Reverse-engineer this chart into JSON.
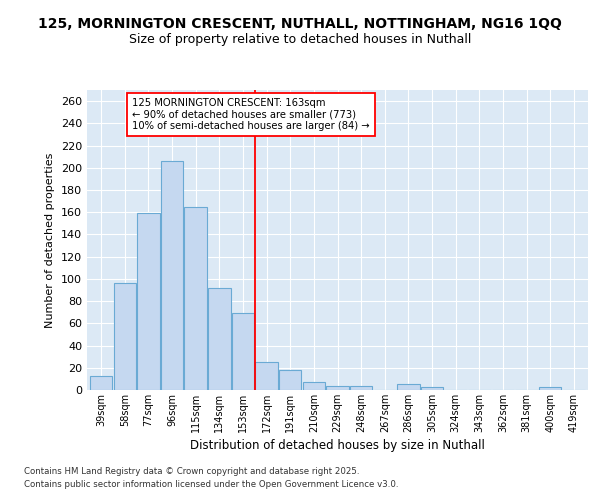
{
  "title_line1": "125, MORNINGTON CRESCENT, NUTHALL, NOTTINGHAM, NG16 1QQ",
  "title_line2": "Size of property relative to detached houses in Nuthall",
  "xlabel": "Distribution of detached houses by size in Nuthall",
  "ylabel": "Number of detached properties",
  "categories": [
    "39sqm",
    "58sqm",
    "77sqm",
    "96sqm",
    "115sqm",
    "134sqm",
    "153sqm",
    "172sqm",
    "191sqm",
    "210sqm",
    "229sqm",
    "248sqm",
    "267sqm",
    "286sqm",
    "305sqm",
    "324sqm",
    "343sqm",
    "362sqm",
    "381sqm",
    "400sqm",
    "419sqm"
  ],
  "values": [
    13,
    96,
    159,
    206,
    165,
    92,
    69,
    25,
    18,
    7,
    4,
    4,
    0,
    5,
    3,
    0,
    0,
    0,
    0,
    3,
    0
  ],
  "bar_color": "#c5d8f0",
  "bar_edge_color": "#6aaad4",
  "redline_index": 6.5,
  "annotation_title": "125 MORNINGTON CRESCENT: 163sqm",
  "annotation_line1": "← 90% of detached houses are smaller (773)",
  "annotation_line2": "10% of semi-detached houses are larger (84) →",
  "ylim": [
    0,
    270
  ],
  "yticks": [
    0,
    20,
    40,
    60,
    80,
    100,
    120,
    140,
    160,
    180,
    200,
    220,
    240,
    260
  ],
  "fig_bg_color": "#ffffff",
  "plot_bg_color": "#dce9f5",
  "grid_color": "#ffffff",
  "footer_line1": "Contains HM Land Registry data © Crown copyright and database right 2025.",
  "footer_line2": "Contains public sector information licensed under the Open Government Licence v3.0."
}
